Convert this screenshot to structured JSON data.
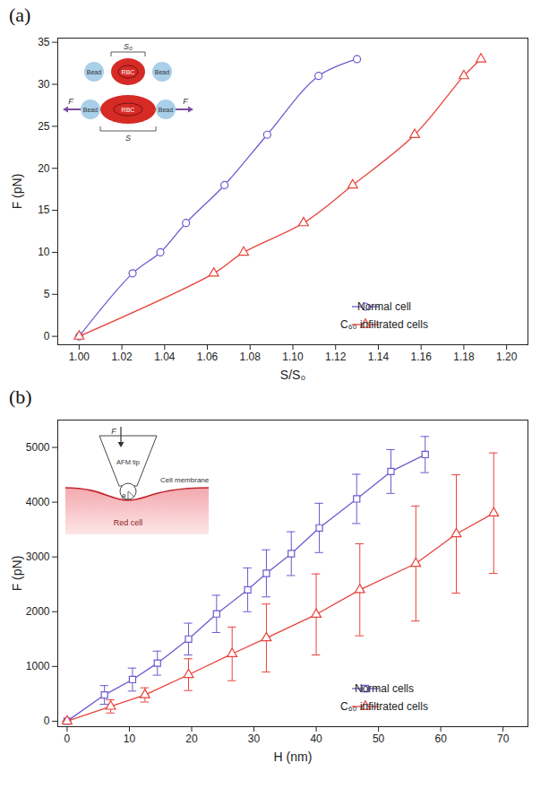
{
  "chart_data": [
    {
      "type": "line",
      "title": "(a)",
      "xlabel": "S/S₀",
      "ylabel": "F (pN)",
      "xlim": [
        0.99,
        1.21
      ],
      "xticks": [
        {
          "value": 1.0,
          "label": "1.00"
        },
        1.02,
        1.04,
        1.06,
        1.08,
        {
          "value": 1.1,
          "label": "1.10"
        },
        1.12,
        1.14,
        1.16,
        1.18,
        {
          "value": 1.2,
          "label": "1.20"
        }
      ],
      "ylim": [
        -1,
        35.5
      ],
      "yticks": [
        0,
        5,
        10,
        15,
        20,
        25,
        30,
        35
      ],
      "grid": false,
      "legend": "lower right",
      "annotations": [
        "Bead",
        "RBC",
        "S₀",
        "S",
        "F"
      ],
      "series": [
        {
          "name": "Normal cell",
          "color": "#6a5bd0",
          "marker": "circle",
          "line_style": "solid",
          "x": [
            1.0,
            1.025,
            1.038,
            1.05,
            1.068,
            1.088,
            1.112,
            1.13
          ],
          "values": [
            0,
            7.5,
            10,
            13.5,
            18,
            24,
            31,
            33
          ]
        },
        {
          "name": "C₆₀ infiltrated cells",
          "color": "#e8433b",
          "marker": "triangle",
          "line_style": "solid",
          "x": [
            1.0,
            1.063,
            1.077,
            1.105,
            1.128,
            1.157,
            1.18,
            1.188
          ],
          "values": [
            0,
            7.5,
            10,
            13.5,
            18,
            24,
            31,
            33
          ]
        }
      ]
    },
    {
      "type": "line",
      "title": "(b)",
      "xlabel": "H (nm)",
      "ylabel": "F (pN)",
      "xlim": [
        -1.5,
        74
      ],
      "xticks": [
        0,
        10,
        20,
        30,
        40,
        50,
        60,
        70
      ],
      "ylim": [
        -100,
        5500
      ],
      "yticks": [
        0,
        1000,
        2000,
        3000,
        4000,
        5000
      ],
      "grid": false,
      "legend": "lower right",
      "annotations": [
        "F",
        "AFM tip",
        "θ",
        "Cell membrane",
        "Red cell"
      ],
      "series": [
        {
          "name": "Normal cells",
          "color": "#6a5bd0",
          "marker": "square",
          "line_style": "solid",
          "x": [
            0,
            6,
            10.5,
            14.5,
            19.5,
            24,
            29,
            32,
            36,
            40.5,
            46.5,
            52,
            57.5
          ],
          "values": [
            0,
            480,
            760,
            1060,
            1500,
            1960,
            2400,
            2700,
            3060,
            3530,
            4060,
            4560,
            4870
          ],
          "errors": [
            0,
            170,
            210,
            220,
            290,
            340,
            400,
            430,
            400,
            450,
            450,
            400,
            330
          ]
        },
        {
          "name": "C₆₀ infiltrated cells",
          "color": "#e8433b",
          "marker": "triangle",
          "line_style": "solid",
          "x": [
            0,
            7,
            12.5,
            19.5,
            26.5,
            32,
            40,
            47,
            56,
            62.5,
            68.5
          ],
          "values": [
            0,
            270,
            480,
            850,
            1230,
            1520,
            1950,
            2400,
            2880,
            3420,
            3800
          ],
          "errors": [
            0,
            120,
            130,
            290,
            490,
            620,
            740,
            840,
            1050,
            1080,
            1100
          ]
        }
      ]
    }
  ]
}
